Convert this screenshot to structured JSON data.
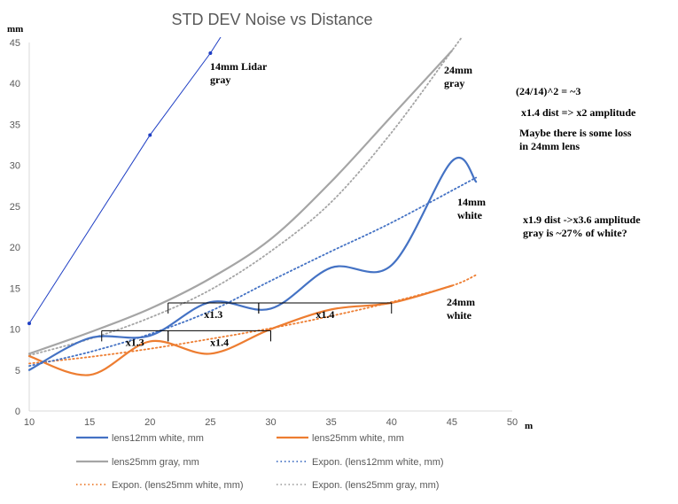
{
  "chart_data": {
    "type": "line",
    "title": "STD DEV Noise vs Distance",
    "ylabel": "mm",
    "xlabel": "m",
    "xlim": [
      10,
      50
    ],
    "ylim": [
      0,
      45
    ],
    "xticks": [
      "10",
      "15",
      "20",
      "25",
      "30",
      "35",
      "40",
      "45",
      "50"
    ],
    "yticks": [
      "0",
      "5",
      "10",
      "15",
      "20",
      "25",
      "30",
      "35",
      "40",
      "45"
    ],
    "grid": false,
    "legend_position": "bottom",
    "series": [
      {
        "name": "lens12mm white, mm",
        "color": "#4472C4",
        "style": "solid",
        "smooth": true,
        "points": [
          [
            10,
            5.0
          ],
          [
            15,
            8.9
          ],
          [
            20,
            9.2
          ],
          [
            25,
            13.3
          ],
          [
            30,
            12.5
          ],
          [
            35,
            17.5
          ],
          [
            40,
            17.8
          ],
          [
            45,
            30.5
          ],
          [
            47,
            28.0
          ]
        ]
      },
      {
        "name": "lens25mm white, mm",
        "color": "#ED7D31",
        "style": "solid",
        "smooth": true,
        "points": [
          [
            10,
            6.7
          ],
          [
            15,
            4.4
          ],
          [
            20,
            8.5
          ],
          [
            25,
            7.0
          ],
          [
            30,
            10.0
          ],
          [
            35,
            12.4
          ],
          [
            40,
            13.2
          ],
          [
            45,
            15.3
          ]
        ]
      },
      {
        "name": "lens25mm gray, mm",
        "color": "#A5A5A5",
        "style": "solid",
        "smooth": true,
        "points": [
          [
            10,
            7.0
          ],
          [
            15,
            9.6
          ],
          [
            20,
            12.5
          ],
          [
            25,
            16.2
          ],
          [
            30,
            21.0
          ],
          [
            35,
            28.0
          ],
          [
            40,
            36.0
          ],
          [
            45,
            44.0
          ]
        ]
      },
      {
        "name": "Expon. (lens12mm white, mm)",
        "color": "#4472C4",
        "style": "dotted",
        "smooth": true,
        "points": [
          [
            10,
            5.5
          ],
          [
            15,
            7.2
          ],
          [
            20,
            9.4
          ],
          [
            25,
            12.2
          ],
          [
            30,
            15.9
          ],
          [
            35,
            19.5
          ],
          [
            40,
            23.0
          ],
          [
            47,
            28.5
          ]
        ]
      },
      {
        "name": "Expon. (lens25mm white, mm)",
        "color": "#ED7D31",
        "style": "dotted",
        "smooth": true,
        "points": [
          [
            10,
            5.8
          ],
          [
            15,
            6.6
          ],
          [
            20,
            7.6
          ],
          [
            25,
            8.8
          ],
          [
            30,
            10.1
          ],
          [
            35,
            11.6
          ],
          [
            40,
            13.3
          ],
          [
            45,
            15.3
          ],
          [
            47,
            16.6
          ]
        ]
      },
      {
        "name": "Expon. (lens25mm gray, mm)",
        "color": "#A5A5A5",
        "style": "dotted",
        "smooth": true,
        "points": [
          [
            10,
            6.8
          ],
          [
            15,
            8.8
          ],
          [
            20,
            11.4
          ],
          [
            25,
            14.8
          ],
          [
            30,
            19.5
          ],
          [
            35,
            25.5
          ],
          [
            40,
            34.0
          ],
          [
            45,
            44.0
          ],
          [
            46,
            46.0
          ]
        ]
      },
      {
        "name": "",
        "color": "#1F3FC4",
        "style": "thin",
        "smooth": false,
        "markers": true,
        "points": [
          [
            10,
            10.7
          ],
          [
            20,
            33.7
          ],
          [
            25,
            43.7
          ],
          [
            26,
            46
          ]
        ]
      }
    ],
    "brackets": [
      {
        "x1": 16,
        "x2": 21.5,
        "y": 9.8,
        "label": "x1.3"
      },
      {
        "x1": 21.5,
        "x2": 30,
        "y": 9.8,
        "label": "x1.4"
      },
      {
        "x1": 21.5,
        "x2": 29,
        "y": 13.2,
        "label": "x1.3"
      },
      {
        "x1": 29,
        "x2": 40,
        "y": 13.2,
        "label": "x1.4"
      }
    ],
    "annotations": [
      {
        "lines": [
          "14mm Lidar",
          "gray"
        ]
      },
      {
        "lines": [
          "24mm",
          "gray"
        ]
      },
      {
        "lines": [
          "14mm",
          "white"
        ]
      },
      {
        "lines": [
          "24mm",
          "white"
        ]
      },
      {
        "lines": [
          "(24/14)^2 = ~3"
        ]
      },
      {
        "lines": [
          "x1.4 dist => x2 amplitude"
        ]
      },
      {
        "lines": [
          "Maybe there is some loss",
          "in 24mm lens"
        ]
      },
      {
        "lines": [
          "x1.9 dist ->x3.6 amplitude",
          "gray is ~27% of white?"
        ]
      }
    ]
  }
}
